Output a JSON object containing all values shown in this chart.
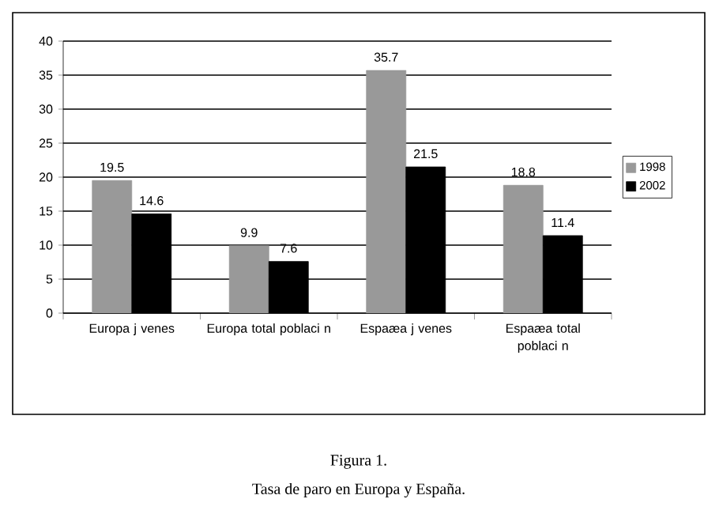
{
  "chart_data": {
    "type": "bar",
    "categories": [
      "Europa j venes",
      "Europa total poblaci n",
      "Espaæa j venes",
      "Espaæa total poblaci n"
    ],
    "series": [
      {
        "name": "1998",
        "color": "#999999",
        "values": [
          19.5,
          9.9,
          35.7,
          18.8
        ]
      },
      {
        "name": "2002",
        "color": "#000000",
        "values": [
          14.6,
          7.6,
          21.5,
          11.4
        ]
      }
    ],
    "ylim": [
      0,
      40
    ],
    "yticks": [
      0,
      5,
      10,
      15,
      20,
      25,
      30,
      35,
      40
    ],
    "grid": "y",
    "legend": "right",
    "data_labels": true,
    "annotations": [
      "Figura 1.",
      "Tasa de paro en Europa y España."
    ]
  }
}
